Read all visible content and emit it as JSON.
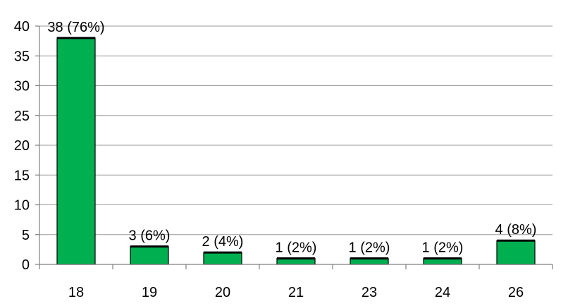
{
  "chart_data": {
    "type": "bar",
    "title": "",
    "xlabel": "",
    "ylabel": "",
    "categories": [
      "18",
      "19",
      "20",
      "21",
      "23",
      "24",
      "26"
    ],
    "values": [
      38,
      3,
      2,
      1,
      1,
      1,
      4
    ],
    "data_labels": [
      "38 (76%)",
      "3 (6%)",
      "2 (4%)",
      "1 (2%)",
      "1 (2%)",
      "1 (2%)",
      "4 (8%)"
    ],
    "ylim": [
      0,
      40
    ],
    "yticks": [
      "0",
      "5",
      "10",
      "15",
      "20",
      "25",
      "30",
      "35",
      "40"
    ],
    "grid": true,
    "legend": "none",
    "bar_color": "#00b050"
  }
}
